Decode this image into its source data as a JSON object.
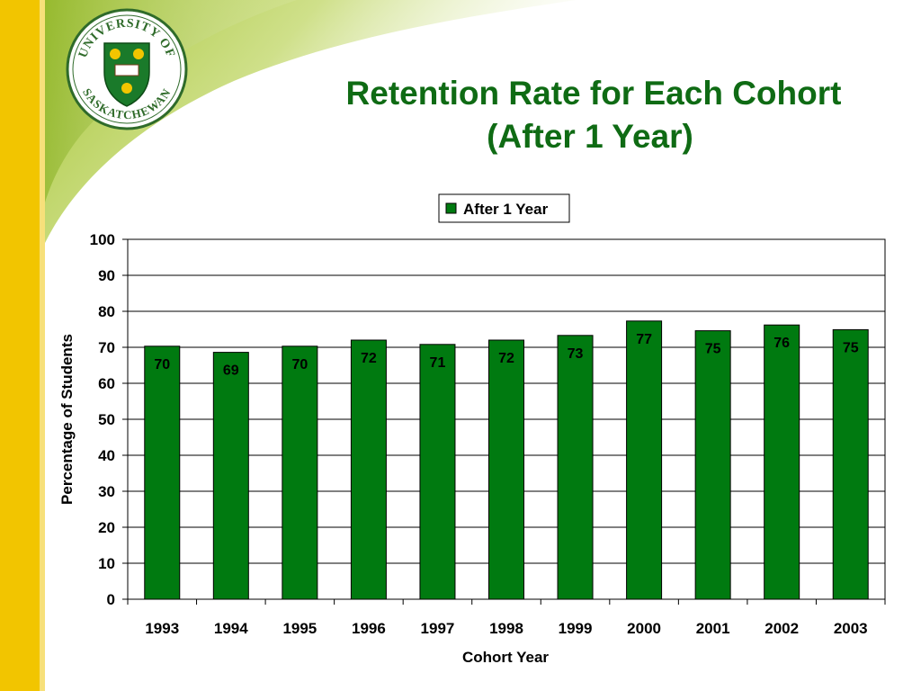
{
  "slide": {
    "title_line_1": "Retention Rate for Each Cohort",
    "title_line_2": "(After 1 Year)",
    "logo_text": "UNIVERSITY OF SASKATCHEWAN",
    "accent_color": "#0f6b14",
    "sidebar_color": "#f2c500"
  },
  "chart_data": {
    "type": "bar",
    "title": "",
    "xlabel": "Cohort Year",
    "ylabel": "Percentage of Students",
    "ylim": [
      0,
      100
    ],
    "yticks": [
      0,
      10,
      20,
      30,
      40,
      50,
      60,
      70,
      80,
      90,
      100
    ],
    "grid": true,
    "legend_position": "top",
    "categories": [
      "1993",
      "1994",
      "1995",
      "1996",
      "1997",
      "1998",
      "1999",
      "2000",
      "2001",
      "2002",
      "2003"
    ],
    "series": [
      {
        "name": "After 1 Year",
        "color": "#007a10",
        "values": [
          70.3,
          68.6,
          70.3,
          72.0,
          70.8,
          72.0,
          73.3,
          77.3,
          74.6,
          76.2,
          74.9
        ],
        "labels": [
          "70",
          "69",
          "70",
          "72",
          "71",
          "72",
          "73",
          "77",
          "75",
          "76",
          "75"
        ]
      }
    ]
  }
}
